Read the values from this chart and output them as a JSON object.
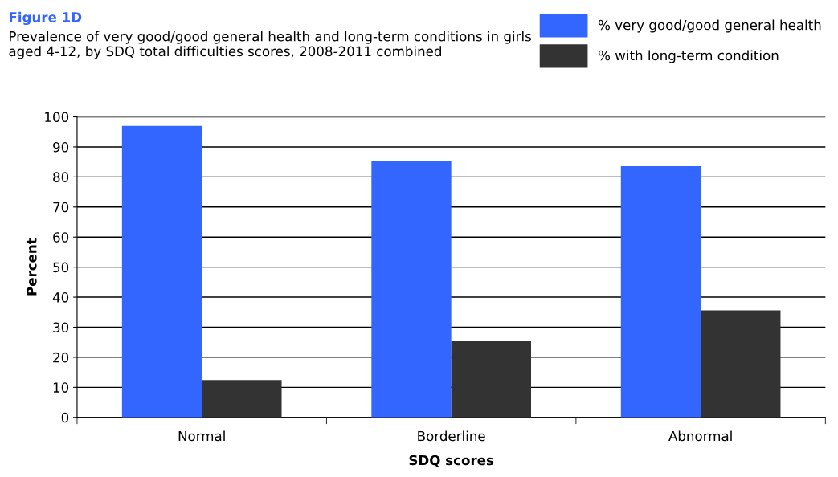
{
  "chart_data": {
    "type": "bar",
    "title": "Figure 1D",
    "subtitle": "Prevalence of very good/good general health and long-term conditions in girls aged 4-12, by SDQ total difficulties scores, 2008-2011 combined",
    "xlabel": "SDQ scores",
    "ylabel": "Percent",
    "categories": [
      "Normal",
      "Borderline",
      "Abnormal"
    ],
    "series": [
      {
        "name": "% very good/good general health",
        "color": "#3366ff",
        "values": [
          97.0,
          85.2,
          83.6
        ]
      },
      {
        "name": "% with long-term condition",
        "color": "#333333",
        "values": [
          12.4,
          25.3,
          35.6
        ]
      }
    ],
    "ylim": [
      0,
      100
    ],
    "yticks": [
      0,
      10,
      20,
      30,
      40,
      50,
      60,
      70,
      80,
      90,
      100
    ],
    "grid": "y",
    "legend": "top right"
  }
}
